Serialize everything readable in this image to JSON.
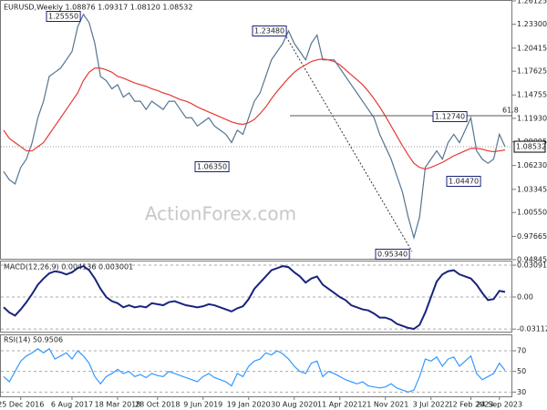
{
  "chart_data": [
    {
      "type": "line",
      "title": "EURUSD,Weekly 1.08876 1.09317 1.08120 1.08532",
      "watermark": "ActionForex.com",
      "last_price_label": "1.08532",
      "annotations": [
        "1.25550",
        "1.23480",
        "1.06350",
        "0.95340",
        "1.12740",
        "1.04470",
        "61.8"
      ],
      "categories": [
        null,
        null,
        null,
        "25 Dec 2016",
        null,
        null,
        null,
        null,
        null,
        null,
        null,
        null,
        "6 Aug 2017",
        null,
        null,
        null,
        null,
        null,
        null,
        null,
        "18 Mar 2018",
        null,
        null,
        null,
        null,
        null,
        null,
        "28 Oct 2018",
        null,
        null,
        null,
        null,
        null,
        null,
        null,
        "9 Jun 2019",
        null,
        null,
        null,
        null,
        null,
        null,
        null,
        "19 Jan 2020",
        null,
        null,
        null,
        null,
        null,
        null,
        null,
        "30 Aug 2020",
        null,
        null,
        null,
        null,
        null,
        null,
        null,
        "11 Apr 2021",
        null,
        null,
        null,
        null,
        null,
        null,
        null,
        "21 Nov 2021",
        null,
        null,
        null,
        null,
        null,
        null,
        null,
        "3 Jul 2022",
        null,
        null,
        null,
        null,
        null,
        null,
        "12 Feb 2023",
        null,
        null,
        null,
        null,
        "24 Sep 2023",
        null
      ],
      "series": [
        {
          "color": "#557590",
          "values": [
            1.055,
            1.045,
            1.04,
            1.06,
            1.07,
            1.09,
            1.12,
            1.14,
            1.17,
            1.175,
            1.18,
            1.19,
            1.2,
            1.23,
            1.245,
            1.235,
            1.21,
            1.17,
            1.165,
            1.155,
            1.16,
            1.145,
            1.15,
            1.14,
            1.14,
            1.13,
            1.14,
            1.135,
            1.13,
            1.14,
            1.14,
            1.13,
            1.12,
            1.12,
            1.11,
            1.115,
            1.12,
            1.11,
            1.105,
            1.1,
            1.09,
            1.105,
            1.1,
            1.12,
            1.14,
            1.15,
            1.17,
            1.19,
            1.2,
            1.21,
            1.225,
            1.21,
            1.2,
            1.19,
            1.21,
            1.22,
            1.19,
            1.19,
            1.19,
            1.18,
            1.17,
            1.16,
            1.15,
            1.14,
            1.13,
            1.12,
            1.1,
            1.085,
            1.07,
            1.05,
            1.03,
            1.0,
            0.975,
            1.0,
            1.06,
            1.07,
            1.08,
            1.07,
            1.09,
            1.1,
            1.09,
            1.105,
            1.12,
            1.08,
            1.07,
            1.065,
            1.07,
            1.1,
            1.085
          ]
        },
        {
          "color": "#e53935",
          "values": [
            1.105,
            1.095,
            1.09,
            1.085,
            1.08,
            1.08,
            1.085,
            1.09,
            1.1,
            1.11,
            1.12,
            1.13,
            1.14,
            1.15,
            1.165,
            1.175,
            1.18,
            1.18,
            1.178,
            1.175,
            1.17,
            1.168,
            1.165,
            1.162,
            1.16,
            1.158,
            1.155,
            1.153,
            1.15,
            1.148,
            1.145,
            1.142,
            1.14,
            1.137,
            1.133,
            1.13,
            1.127,
            1.124,
            1.121,
            1.118,
            1.115,
            1.113,
            1.112,
            1.114,
            1.118,
            1.125,
            1.133,
            1.143,
            1.152,
            1.16,
            1.168,
            1.175,
            1.18,
            1.184,
            1.188,
            1.19,
            1.191,
            1.19,
            1.188,
            1.184,
            1.178,
            1.172,
            1.166,
            1.16,
            1.152,
            1.143,
            1.133,
            1.122,
            1.11,
            1.098,
            1.086,
            1.075,
            1.065,
            1.06,
            1.058,
            1.06,
            1.063,
            1.066,
            1.07,
            1.074,
            1.077,
            1.08,
            1.083,
            1.083,
            1.082,
            1.08,
            1.079,
            1.08,
            1.081
          ]
        }
      ],
      "ylim": [
        0.94845,
        1.26125
      ],
      "yticks": [
        1.26125,
        {
          "value": 1.233,
          "label": "1.23300"
        },
        1.20415,
        1.17625,
        1.14755,
        {
          "value": 1.1193,
          "label": "1.11930"
        },
        1.09095,
        {
          "value": 1.0623,
          "label": "1.06230"
        },
        1.03345,
        {
          "value": 1.0055,
          "label": "1.00550"
        },
        0.97665,
        0.94845
      ],
      "grid": false
    },
    {
      "type": "line",
      "title": "MACD(12,26,9) 0.004136 0.003001",
      "series": [
        {
          "color": "#1a237e",
          "values": [
            -0.01,
            -0.015,
            -0.018,
            -0.012,
            -0.005,
            0.003,
            0.012,
            0.018,
            0.023,
            0.025,
            0.024,
            0.022,
            0.024,
            0.028,
            0.03,
            0.026,
            0.018,
            0.008,
            0.0,
            -0.004,
            -0.006,
            -0.01,
            -0.008,
            -0.01,
            -0.009,
            -0.01,
            -0.006,
            -0.007,
            -0.008,
            -0.005,
            -0.004,
            -0.006,
            -0.008,
            -0.009,
            -0.01,
            -0.009,
            -0.007,
            -0.008,
            -0.01,
            -0.012,
            -0.014,
            -0.011,
            -0.009,
            -0.002,
            0.008,
            0.014,
            0.02,
            0.026,
            0.028,
            0.03,
            0.029,
            0.024,
            0.02,
            0.014,
            0.018,
            0.02,
            0.012,
            0.008,
            0.004,
            0.0,
            -0.003,
            -0.008,
            -0.01,
            -0.012,
            -0.013,
            -0.016,
            -0.02,
            -0.02,
            -0.022,
            -0.026,
            -0.028,
            -0.03,
            -0.031,
            -0.027,
            -0.015,
            0.0,
            0.015,
            0.022,
            0.025,
            0.026,
            0.022,
            0.02,
            0.018,
            0.012,
            0.004,
            -0.003,
            -0.002,
            0.006,
            0.005
          ]
        }
      ],
      "ylim": [
        -0.0345,
        0.0345
      ],
      "yticks": [
        0.030916,
        {
          "value": 0,
          "label": "0.00"
        },
        -0.031124
      ]
    },
    {
      "type": "line",
      "title": "RSI(14) 50.9506",
      "series": [
        {
          "color": "#3399ff",
          "values": [
            45,
            40,
            50,
            60,
            65,
            68,
            72,
            68,
            72,
            62,
            65,
            68,
            62,
            70,
            65,
            58,
            45,
            38,
            45,
            48,
            52,
            48,
            50,
            45,
            47,
            44,
            48,
            46,
            45,
            50,
            48,
            46,
            44,
            42,
            40,
            45,
            48,
            44,
            42,
            40,
            36,
            48,
            45,
            55,
            60,
            62,
            68,
            66,
            70,
            67,
            62,
            55,
            50,
            48,
            58,
            60,
            45,
            50,
            48,
            45,
            42,
            40,
            38,
            40,
            36,
            35,
            34,
            35,
            38,
            34,
            32,
            30,
            32,
            45,
            62,
            60,
            64,
            55,
            62,
            64,
            55,
            60,
            65,
            48,
            42,
            45,
            48,
            58,
            51
          ]
        }
      ],
      "ylim": [
        25,
        85
      ],
      "yticks": [
        30,
        50,
        70
      ]
    }
  ]
}
